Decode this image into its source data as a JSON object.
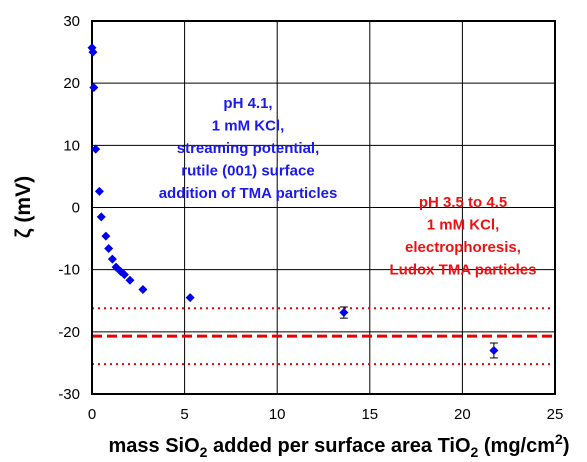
{
  "chart_data": {
    "type": "scatter",
    "xlabel": {
      "parts": [
        "mass SiO",
        "2",
        " added per surface area TiO",
        "2",
        " (mg/cm",
        "2",
        ")"
      ]
    },
    "ylabel": "ζ (mV)",
    "xlim": [
      0,
      25
    ],
    "ylim": [
      -30,
      30
    ],
    "xticks": [
      0,
      5,
      10,
      15,
      20,
      25
    ],
    "yticks": [
      30,
      20,
      10,
      0,
      -10,
      -20,
      -30
    ],
    "grid": true,
    "legend": "none",
    "colors": {
      "points": "#0000ee",
      "lines": "#ee0000",
      "annotation_blue": "#1a1aee",
      "annotation_red": "#ee1111"
    },
    "series": [
      {
        "x": [
          0.0,
          0.05,
          0.1,
          0.2,
          0.4,
          0.5,
          0.75,
          0.9,
          1.1,
          1.3,
          1.55,
          1.75,
          2.05,
          2.75,
          5.3,
          13.6,
          21.7
        ],
        "y": [
          25.7,
          25.0,
          19.3,
          9.4,
          2.6,
          -1.5,
          -4.6,
          -6.6,
          -8.3,
          -9.6,
          -10.3,
          -10.8,
          -11.7,
          -13.2,
          -14.5,
          -16.9,
          -23.0
        ],
        "error": [
          0,
          0,
          0,
          0,
          0,
          0,
          0,
          0,
          0,
          0,
          0,
          0,
          0,
          0,
          0,
          0.9,
          1.2
        ]
      }
    ],
    "reference_lines": [
      {
        "y": -20.7,
        "style": "dashed"
      },
      {
        "y": -16.2,
        "style": "dotted"
      },
      {
        "y": -25.2,
        "style": "dotted"
      }
    ],
    "annotations": [
      {
        "lines": [
          "pH 4.1,",
          "1 mM KCl,",
          "streaming potential,",
          "rutile (001) surface",
          "addition of TMA particles"
        ],
        "color": "blue"
      },
      {
        "lines": [
          "pH 3.5 to 4.5",
          "1 mM KCl,",
          "electrophoresis,",
          "Ludox TMA particles"
        ],
        "color": "red"
      }
    ]
  }
}
